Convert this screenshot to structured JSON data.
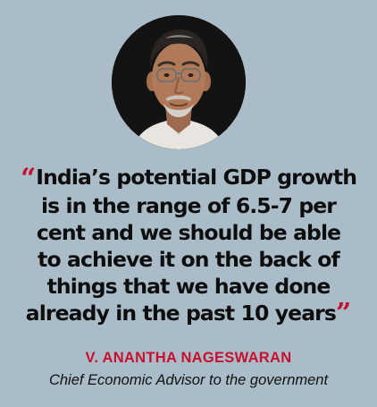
{
  "quote": {
    "open_mark": "“",
    "line1": "India’s potential GDP growth",
    "line2": "is in the range of 6.5-7 per",
    "line3": "cent and we should be able",
    "line4": "to achieve it on the back of",
    "line5": "things that we have done",
    "line6": "already in the past 10 years",
    "close_mark": "”"
  },
  "attribution": {
    "name": "V. ANANTHA NAGESWARAN",
    "role": "Chief Economic Advisor to the government"
  },
  "colors": {
    "background": "#a9bcc8",
    "accent": "#c8102e",
    "text": "#0e0e0e"
  }
}
